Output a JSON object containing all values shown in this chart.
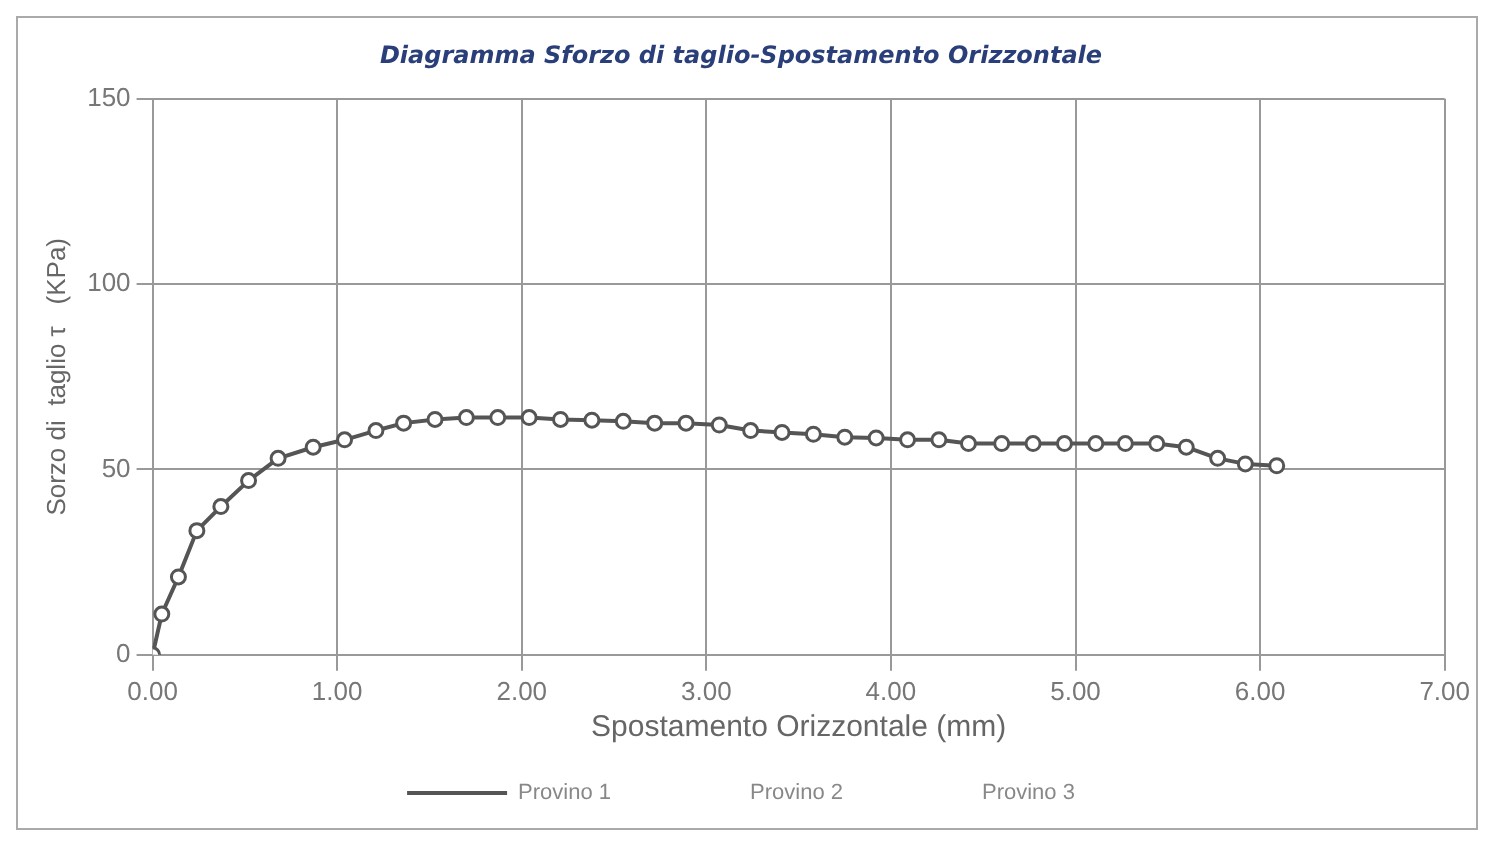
{
  "chart_data": {
    "type": "line",
    "title": "Diagramma Sforzo di taglio-Spostamento Orizzontale",
    "xlabel": "Spostamento Orizzontale (mm)",
    "ylabel": "Sorzo di  taglio τ   (KPa)",
    "xlim": [
      0,
      7
    ],
    "xticks": [
      {
        "value": 0,
        "label": "0.00"
      },
      {
        "value": 1,
        "label": "1.00"
      },
      {
        "value": 2,
        "label": "2.00"
      },
      {
        "value": 3,
        "label": "3.00"
      },
      {
        "value": 4,
        "label": "4.00"
      },
      {
        "value": 5,
        "label": "5.00"
      },
      {
        "value": 6,
        "label": "6.00"
      },
      {
        "value": 7,
        "label": "7.00"
      }
    ],
    "ylim": [
      0,
      150
    ],
    "yticks": [
      0,
      50,
      100,
      150
    ],
    "grid": true,
    "legend": "bottom",
    "marker": "circle",
    "line_style": "solid",
    "series": [
      {
        "name": "Provino 1",
        "color": "#555555",
        "x": [
          0,
          0.05,
          0.14,
          0.24,
          0.37,
          0.52,
          0.68,
          0.87,
          1.04,
          1.21,
          1.36,
          1.53,
          1.7,
          1.87,
          2.04,
          2.21,
          2.38,
          2.55,
          2.72,
          2.89,
          3.07,
          3.24,
          3.41,
          3.58,
          3.75,
          3.92,
          4.09,
          4.26,
          4.42,
          4.6,
          4.77,
          4.94,
          5.11,
          5.27,
          5.44,
          5.6,
          5.77,
          5.92,
          6.09
        ],
        "values": [
          0,
          11,
          21,
          33.5,
          40,
          47,
          53,
          56,
          58,
          60.5,
          62.5,
          63.5,
          64,
          64,
          64,
          63.5,
          63.3,
          63,
          62.5,
          62.5,
          62,
          60.5,
          60,
          59.5,
          58.7,
          58.5,
          58,
          58,
          57,
          57,
          57,
          57,
          57,
          57,
          57,
          56,
          53,
          51.5,
          51
        ]
      },
      {
        "name": "Provino 2"
      },
      {
        "name": "Provino 3"
      }
    ]
  }
}
